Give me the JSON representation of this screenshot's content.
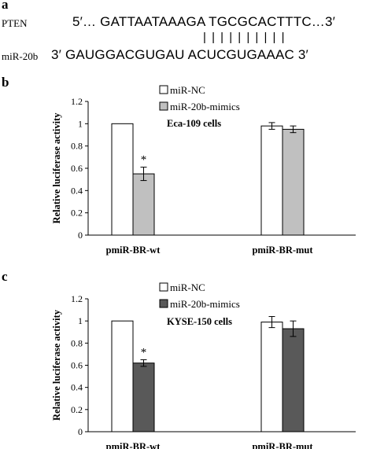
{
  "panel_a": {
    "letter": "a",
    "pten_label": "PTEN",
    "pten_seq": "5′… GATTAATAAAGA TGCGCACTTTC…3′",
    "pairing": "| | |   | | | | | | |",
    "mir_label": "miR-20b",
    "mir_seq": "3′  GAUGGACGUGAU ACUCGUGAAAC  3′"
  },
  "chart_data": [
    {
      "type": "bar",
      "panel": "b",
      "cell_line": "Eca-109 cells",
      "ylabel": "Relative luciferase activity",
      "ylim": [
        0,
        1.2
      ],
      "yticks": [
        "0",
        "0.2",
        "0.4",
        "0.6",
        "0.8",
        "1",
        "1.2"
      ],
      "categories": [
        "pmiR-BR-wt",
        "pmiR-BR-mut"
      ],
      "series": [
        {
          "name": "miR-NC",
          "values": [
            1.0,
            0.98
          ],
          "errors": [
            0,
            0.03
          ],
          "color": "#ffffff"
        },
        {
          "name": "miR-20b-mimics",
          "values": [
            0.55,
            0.95
          ],
          "errors": [
            0.06,
            0.03
          ],
          "color": "#c0c0c0"
        }
      ],
      "annotations": [
        "*"
      ],
      "grid": false,
      "legend_position": "top-center"
    },
    {
      "type": "bar",
      "panel": "c",
      "cell_line": "KYSE-150 cells",
      "ylabel": "Relative luciferase activity",
      "ylim": [
        0,
        1.2
      ],
      "yticks": [
        "0",
        "0.2",
        "0.4",
        "0.6",
        "0.8",
        "1",
        "1.2"
      ],
      "categories": [
        "pmiR-BR-wt",
        "pmiR-BR-mut"
      ],
      "series": [
        {
          "name": "miR-NC",
          "values": [
            1.0,
            0.99
          ],
          "errors": [
            0,
            0.05
          ],
          "color": "#ffffff"
        },
        {
          "name": "miR-20b-mimics",
          "values": [
            0.62,
            0.93
          ],
          "errors": [
            0.03,
            0.07
          ],
          "color": "#595959"
        }
      ],
      "annotations": [
        "*"
      ],
      "grid": false,
      "legend_position": "top-center"
    }
  ]
}
